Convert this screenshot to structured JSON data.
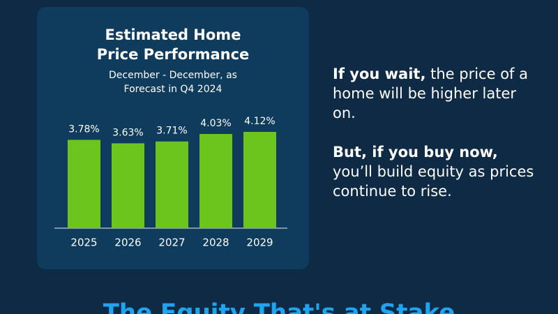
{
  "chart_data": {
    "type": "bar",
    "title": "Estimated Home Price Performance",
    "subtitle": "December - December, as Forecast in Q4 2024",
    "categories": [
      "2025",
      "2026",
      "2027",
      "2028",
      "2029"
    ],
    "values": [
      3.78,
      3.63,
      3.71,
      4.03,
      4.12
    ],
    "value_labels": [
      "3.78%",
      "3.63%",
      "3.71%",
      "4.03%",
      "4.12%"
    ],
    "color": "#6cc51c"
  },
  "message": [
    {
      "bold": "If you wait,",
      "text": "the price of a home will be higher later on."
    },
    {
      "bold": "But, if you buy now,",
      "text": "you’ll build equity as prices continue to rise."
    }
  ],
  "footer_title": "The Equity That's at Stake"
}
